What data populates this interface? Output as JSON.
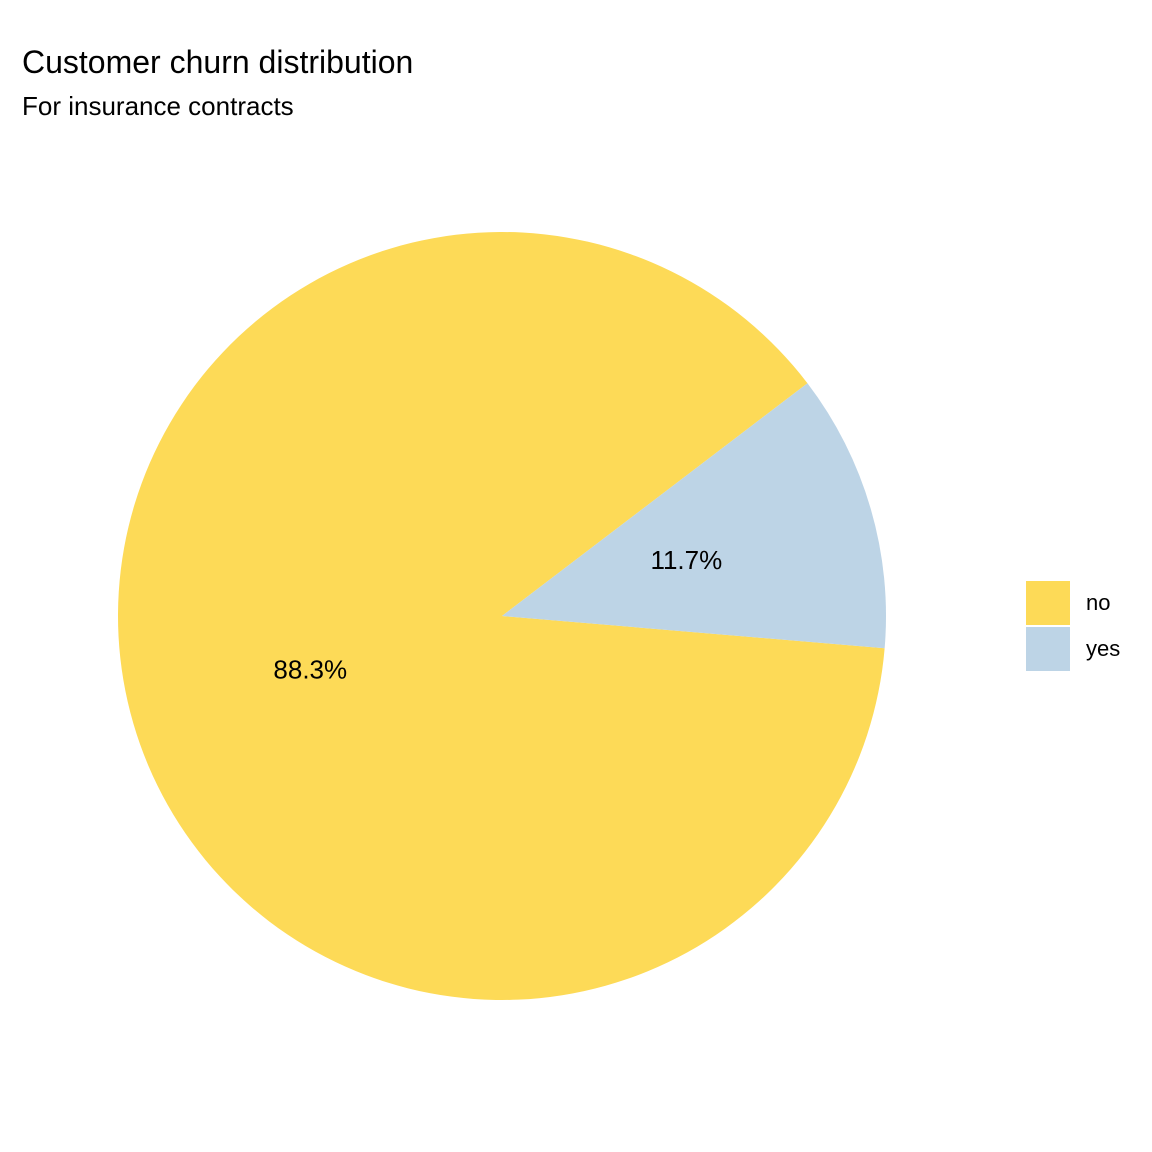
{
  "chart_data": {
    "type": "pie",
    "title": "Customer churn distribution",
    "subtitle": "For insurance contracts",
    "categories": [
      "no",
      "yes"
    ],
    "values": [
      88.3,
      11.7
    ],
    "labels": [
      "88.3%",
      "11.7%"
    ],
    "colors": [
      "#FDDA57",
      "#BDD4E6"
    ],
    "legend": {
      "position": "right",
      "items": [
        {
          "label": "no",
          "color": "#FDDA57"
        },
        {
          "label": "yes",
          "color": "#BDD4E6"
        }
      ]
    }
  }
}
